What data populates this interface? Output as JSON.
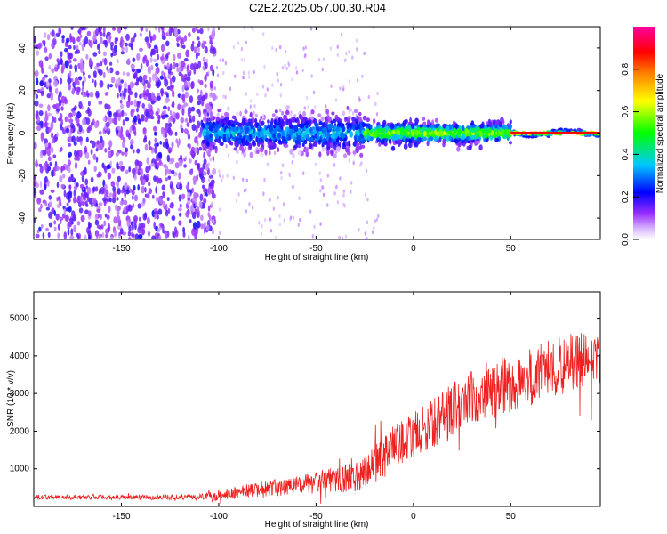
{
  "title": "C2E2.2025.057.00.30.R04",
  "chart_data": [
    {
      "type": "heatmap",
      "xlabel": "Height of straight line (km)",
      "ylabel": "Frequency (Hz)",
      "xlim": [
        -195,
        96
      ],
      "ylim": [
        -50,
        50
      ],
      "xticks": [
        -150,
        -100,
        -50,
        0,
        50
      ],
      "yticks": [
        -40,
        -20,
        0,
        20,
        40
      ],
      "colorbar": {
        "label": "Normalized spectral amplitude",
        "range": [
          0.0,
          1.0
        ],
        "ticks": [
          "0.0",
          "0.2",
          "0.4",
          "0.6",
          "0.8"
        ],
        "colormap": [
          "#ffffff",
          "#9b30ff",
          "#0000ff",
          "#00c8ff",
          "#00ff00",
          "#ffff00",
          "#ff8000",
          "#ff0000",
          "#ff00a0"
        ]
      },
      "regions": [
        {
          "x_range": [
            -195,
            -108
          ],
          "description": "broadband noise",
          "frequency_spread": [
            -50,
            50
          ],
          "amplitude": 0.15
        },
        {
          "x_range": [
            -108,
            -25
          ],
          "description": "signal near 0 Hz",
          "frequency_spread": [
            -8,
            8
          ],
          "amplitude": 0.35
        },
        {
          "x_range": [
            -25,
            50
          ],
          "description": "signal near 0 Hz",
          "frequency_spread": [
            -4,
            4
          ],
          "amplitude": 0.6
        },
        {
          "x_range": [
            50,
            96
          ],
          "description": "narrow signal at 0 Hz",
          "frequency_spread": [
            -1,
            1
          ],
          "amplitude": 0.9
        }
      ]
    },
    {
      "type": "line",
      "xlabel": "Height of straight line (km)",
      "ylabel": "SNR (10 * v/v)",
      "xlim": [
        -195,
        96
      ],
      "ylim": [
        0,
        5700
      ],
      "xticks": [
        -150,
        -100,
        -50,
        0,
        50
      ],
      "yticks": [
        1000,
        2000,
        3000,
        4000,
        5000
      ],
      "color": "#ee2020",
      "trend": {
        "x": [
          -195,
          -150,
          -110,
          -100,
          -80,
          -60,
          -40,
          -30,
          -20,
          -10,
          0,
          10,
          20,
          30,
          40,
          50,
          60,
          70,
          80,
          96
        ],
        "mean": [
          250,
          240,
          250,
          300,
          450,
          550,
          700,
          800,
          1100,
          1600,
          1900,
          2200,
          2600,
          2900,
          3100,
          3200,
          3400,
          3700,
          3800,
          3900
        ],
        "spread": [
          60,
          60,
          70,
          150,
          200,
          250,
          350,
          400,
          500,
          550,
          600,
          650,
          700,
          750,
          800,
          800,
          800,
          800,
          800,
          800
        ]
      }
    }
  ]
}
